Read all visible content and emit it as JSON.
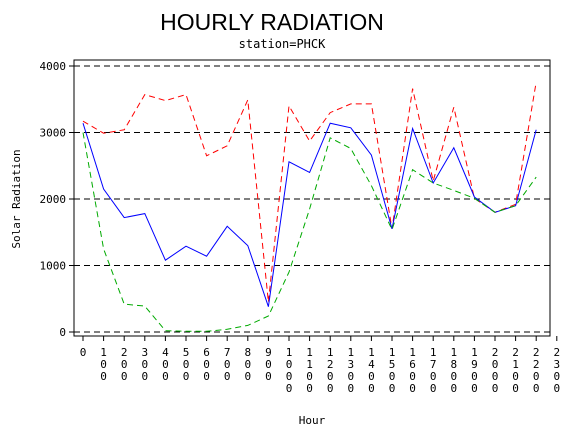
{
  "chart_data": {
    "type": "line",
    "title": "HOURLY RADIATION",
    "subtitle": "station=PHCK",
    "xlabel": "Hour",
    "ylabel": "Solar Radiation",
    "ylim": [
      0,
      4000
    ],
    "yticks": [
      "0",
      "1000",
      "2000",
      "3000",
      "4000"
    ],
    "xticks": [
      "0",
      "100",
      "200",
      "300",
      "400",
      "500",
      "600",
      "700",
      "800",
      "900",
      "1000",
      "1100",
      "1200",
      "1300",
      "1400",
      "1500",
      "1600",
      "1700",
      "1800",
      "1900",
      "2000",
      "2100",
      "2200",
      "2300"
    ],
    "grid": "horizontal dashed",
    "x": [
      0,
      100,
      200,
      300,
      400,
      500,
      600,
      700,
      800,
      900,
      1000,
      1100,
      1200,
      1300,
      1400,
      1500,
      1600,
      1700,
      1800,
      1900,
      2000,
      2100,
      2200
    ],
    "series": [
      {
        "color": "#ff0000",
        "dash": "dashed",
        "values": [
          3170,
          2990,
          3040,
          3570,
          3480,
          3570,
          2650,
          2800,
          3490,
          450,
          3400,
          2870,
          3300,
          3430,
          3430,
          1550,
          3660,
          2270,
          3380,
          2010,
          1800,
          1920,
          3760
        ]
      },
      {
        "color": "#0000ff",
        "dash": "solid",
        "values": [
          3140,
          2150,
          1720,
          1780,
          1080,
          1290,
          1140,
          1590,
          1300,
          380,
          2560,
          2400,
          3140,
          3070,
          2660,
          1550,
          3060,
          2240,
          2770,
          2030,
          1800,
          1900,
          3040
        ]
      },
      {
        "color": "#00aa00",
        "dash": "dashed",
        "values": [
          3000,
          1250,
          420,
          390,
          20,
          10,
          10,
          40,
          100,
          240,
          900,
          1850,
          2920,
          2760,
          2200,
          1540,
          2440,
          2240,
          2130,
          2010,
          1800,
          1900,
          2330
        ]
      }
    ]
  }
}
